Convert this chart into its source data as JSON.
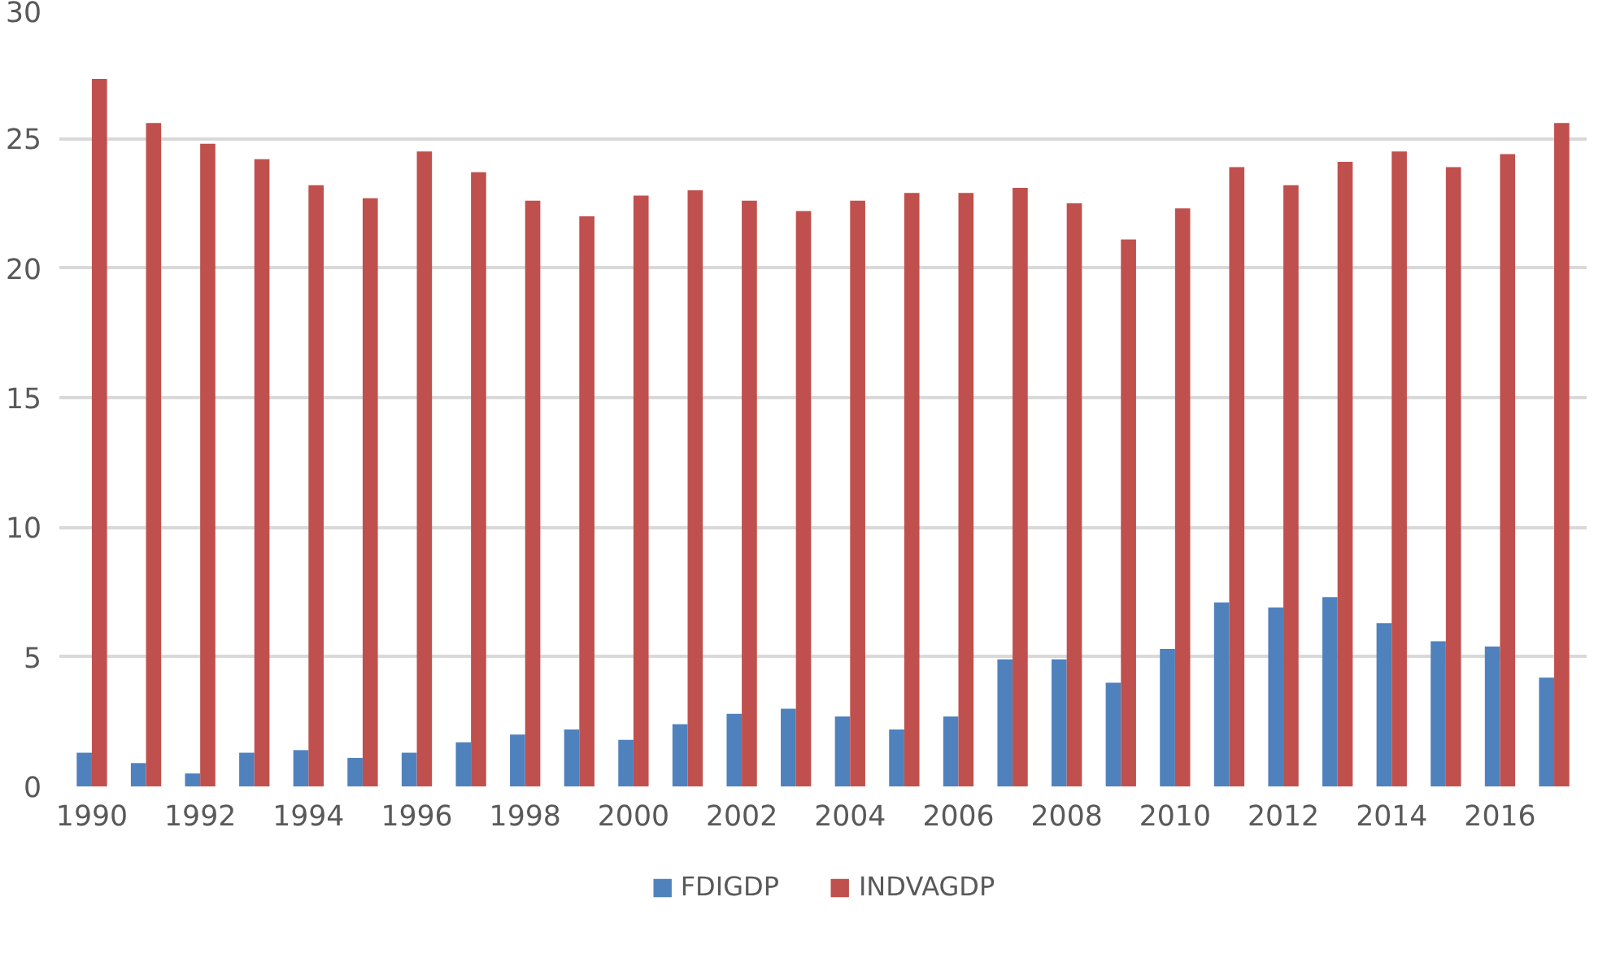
{
  "chart_data": {
    "type": "bar",
    "categories": [
      "1990",
      null,
      "1992",
      null,
      "1994",
      null,
      "1996",
      null,
      "1998",
      null,
      "2000",
      null,
      "2002",
      null,
      "2004",
      null,
      "2006",
      null,
      "2008",
      null,
      "2010",
      null,
      "2012",
      null,
      "2014",
      null,
      "2016",
      null
    ],
    "series": [
      {
        "name": "FDIGDP",
        "color": "#4f81bd",
        "values": [
          1.3,
          0.9,
          0.5,
          1.3,
          1.4,
          1.1,
          1.3,
          1.7,
          2.0,
          2.2,
          1.8,
          2.4,
          2.8,
          3.0,
          2.7,
          2.2,
          2.7,
          4.9,
          4.9,
          4.0,
          5.3,
          7.1,
          6.9,
          7.3,
          6.3,
          5.6,
          5.4,
          4.2
        ]
      },
      {
        "name": "INDVAGDP",
        "color": "#c0504d",
        "values": [
          27.3,
          25.6,
          24.8,
          24.2,
          23.2,
          22.7,
          24.5,
          23.7,
          22.6,
          22.0,
          22.8,
          23.0,
          22.6,
          22.2,
          22.6,
          22.9,
          22.9,
          23.1,
          22.5,
          21.1,
          22.3,
          23.9,
          23.2,
          24.1,
          24.5,
          23.9,
          24.4,
          25.6
        ]
      }
    ],
    "ylim": [
      0,
      30
    ],
    "yticks": [
      0,
      5,
      10,
      15,
      20,
      25,
      30
    ],
    "grid": "y",
    "legend": "bottom"
  }
}
